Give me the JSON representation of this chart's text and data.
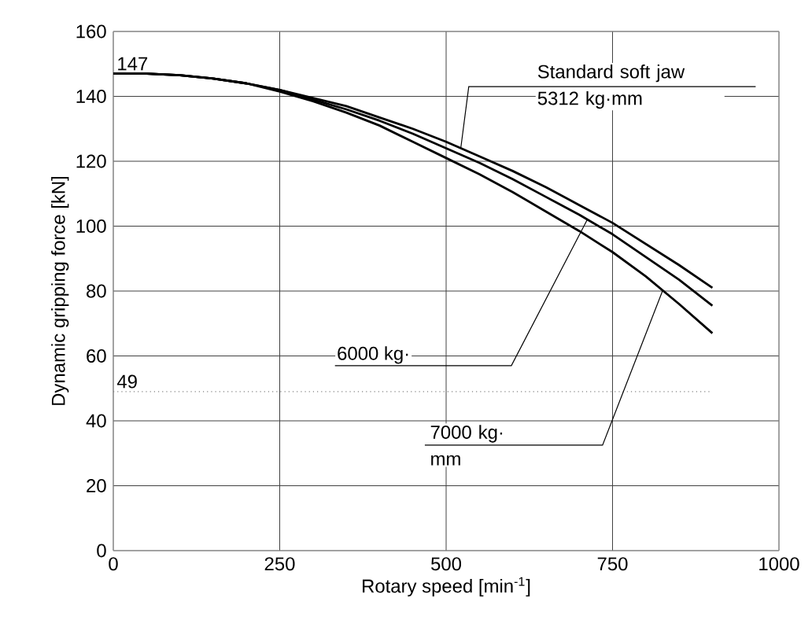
{
  "chart_data": {
    "type": "line",
    "xlabel": "Rotary speed [min$^{-1}$]",
    "ylabel": "Dynamic gripping force [kN]",
    "xlim": [
      0,
      1000
    ],
    "ylim": [
      0,
      160
    ],
    "xticks": [
      0,
      250,
      500,
      750,
      1000
    ],
    "yticks": [
      0,
      20,
      40,
      60,
      80,
      100,
      120,
      140,
      160
    ],
    "grid": true,
    "marker": "none",
    "line_style": "solid",
    "x": [
      0,
      50,
      100,
      150,
      200,
      250,
      300,
      350,
      400,
      450,
      500,
      550,
      600,
      650,
      700,
      750,
      800,
      850,
      900
    ],
    "series": [
      {
        "color": "#000000",
        "values": [
          147,
          147,
          146.5,
          145.5,
          144,
          142,
          139.5,
          137,
          133.5,
          130,
          126,
          121.5,
          117,
          112,
          106.5,
          101,
          94.5,
          88,
          81
        ]
      },
      {
        "color": "#000000",
        "values": [
          147,
          147,
          146.5,
          145.5,
          144,
          142,
          139,
          136,
          132.5,
          128.5,
          124,
          119.5,
          114.5,
          109,
          103.5,
          97.5,
          90.5,
          83.5,
          75.5
        ]
      },
      {
        "color": "#000000",
        "values": [
          147,
          147,
          146.5,
          145.5,
          144,
          141.5,
          138.5,
          135,
          131,
          126,
          121,
          116,
          110.5,
          104.5,
          98.5,
          92,
          84.5,
          76,
          67
        ]
      }
    ],
    "ref_lines": [
      {
        "axis": "y",
        "value": 49,
        "label": "49",
        "color": "#808080",
        "line_style": "dotted"
      }
    ],
    "annotations": [
      {
        "text": "147",
        "x": 0,
        "y": 147
      },
      {
        "text": "Standard soft jaw 5312 kg·mm",
        "x": 522,
        "y": 124
      },
      {
        "text": "6000 kg·",
        "x": 712,
        "y": 102
      },
      {
        "text": "7000 kg· mm",
        "x": 825,
        "y": 80
      }
    ]
  }
}
